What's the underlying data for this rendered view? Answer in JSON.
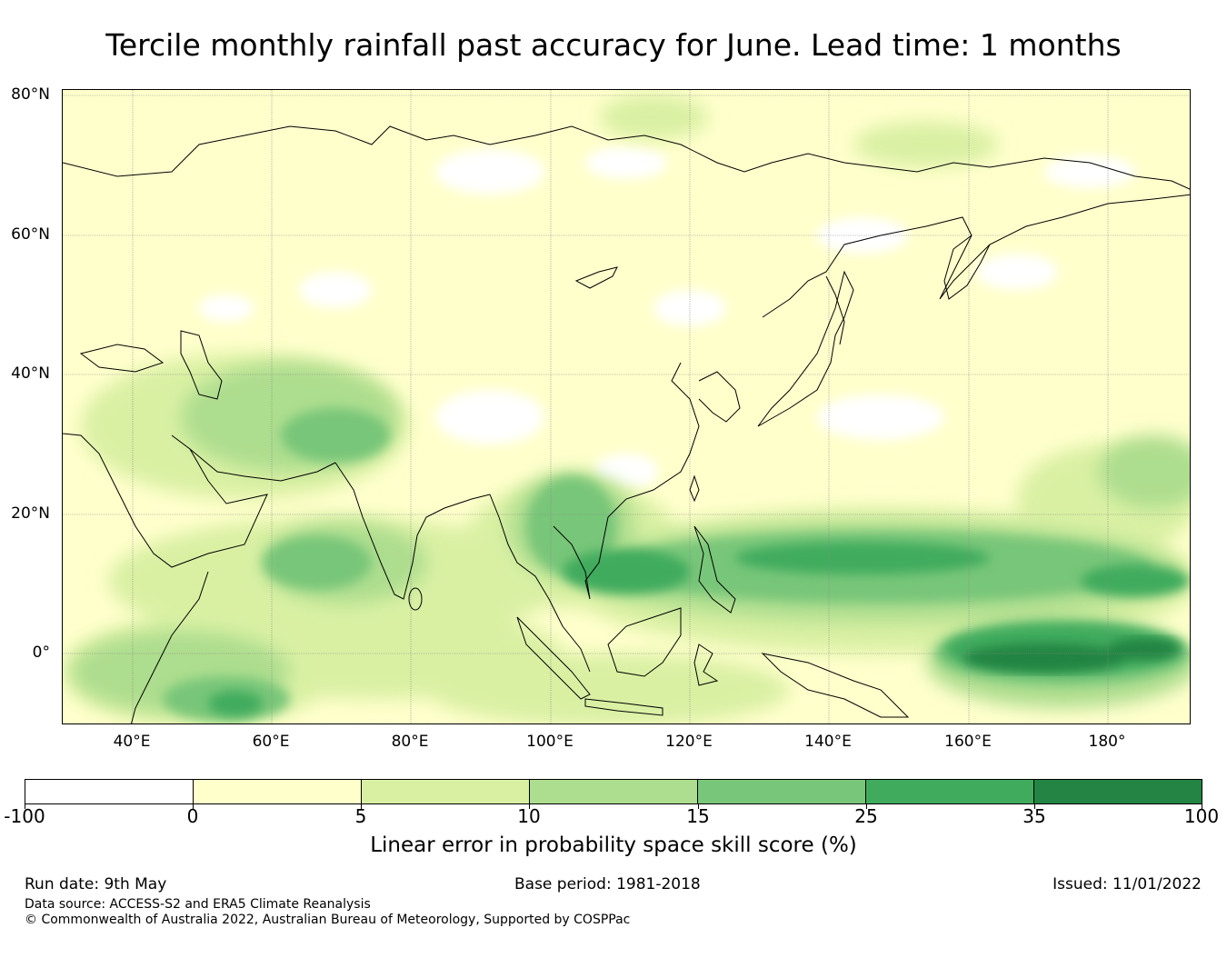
{
  "title": "Tercile monthly rainfall past accuracy for June. Lead time: 1 months",
  "map": {
    "lat_labels": [
      "80°N",
      "60°N",
      "40°N",
      "20°N",
      "0°"
    ],
    "lon_labels": [
      "40°E",
      "60°E",
      "80°E",
      "100°E",
      "120°E",
      "140°E",
      "160°E",
      "180°"
    ]
  },
  "colorbar": {
    "label": "Linear error in probability space skill score (%)",
    "ticks": [
      "-100",
      "0",
      "5",
      "10",
      "15",
      "25",
      "35",
      "100"
    ],
    "colors": [
      "#ffffff",
      "#ffffcc",
      "#d9f0a3",
      "#addd8e",
      "#78c679",
      "#41ab5d",
      "#238443"
    ]
  },
  "footer": {
    "run_date": "Run date: 9th May",
    "base_period": "Base period: 1981-2018",
    "issued": "Issued: 11/01/2022",
    "data_source": "Data source: ACCESS-S2 and ERA5 Climate Reanalysis",
    "copyright": "© Commonwealth of Australia 2022, Australian Bureau of Meteorology, Supported by COSPPac"
  }
}
